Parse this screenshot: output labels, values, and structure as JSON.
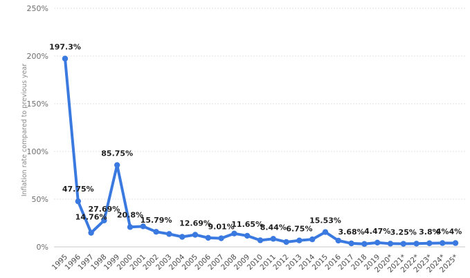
{
  "chart_data": {
    "type": "line",
    "title": "",
    "xlabel": "",
    "ylabel": "Inflation rate compared to previous year",
    "ylim": [
      0,
      250
    ],
    "yticks": [
      0,
      50,
      100,
      150,
      200,
      250
    ],
    "ytick_labels": [
      "0%",
      "50%",
      "100%",
      "150%",
      "200%",
      "250%"
    ],
    "grid": true,
    "legend": "none",
    "line_color": "#3a7ae0",
    "categories": [
      "1995",
      "1996",
      "1997",
      "1998",
      "1999",
      "2000",
      "2001",
      "2002",
      "2003",
      "2004",
      "2005",
      "2006",
      "2007",
      "2008",
      "2009",
      "2010",
      "2011",
      "2012",
      "2013",
      "2014",
      "2015",
      "2016",
      "2017",
      "2018",
      "2019",
      "2020*",
      "2021*",
      "2022*",
      "2023*",
      "2024*",
      "2025*"
    ],
    "values": [
      197.3,
      47.75,
      14.76,
      27.69,
      85.75,
      20.8,
      21.5,
      15.79,
      13.5,
      10.5,
      12.69,
      9.5,
      9.01,
      14.0,
      11.65,
      6.9,
      8.44,
      5.1,
      6.75,
      7.9,
      15.53,
      6.6,
      3.68,
      3.1,
      4.47,
      3.4,
      3.25,
      3.4,
      3.8,
      4.0,
      4.0
    ],
    "data_labels": [
      {
        "index": 0,
        "text": "197.3%"
      },
      {
        "index": 1,
        "text": "47.75%"
      },
      {
        "index": 2,
        "text": "14.76%"
      },
      {
        "index": 3,
        "text": "27.69%"
      },
      {
        "index": 4,
        "text": "85.75%"
      },
      {
        "index": 5,
        "text": "20.8%"
      },
      {
        "index": 7,
        "text": "15.79%"
      },
      {
        "index": 10,
        "text": "12.69%"
      },
      {
        "index": 12,
        "text": "9.01%"
      },
      {
        "index": 14,
        "text": "11.65%"
      },
      {
        "index": 16,
        "text": "8.44%"
      },
      {
        "index": 18,
        "text": "6.75%"
      },
      {
        "index": 20,
        "text": "15.53%"
      },
      {
        "index": 22,
        "text": "3.68%"
      },
      {
        "index": 24,
        "text": "4.47%"
      },
      {
        "index": 26,
        "text": "3.25%"
      },
      {
        "index": 28,
        "text": "3.8%"
      },
      {
        "index": 29,
        "text": "4%"
      },
      {
        "index": 30,
        "text": "4%"
      }
    ]
  }
}
